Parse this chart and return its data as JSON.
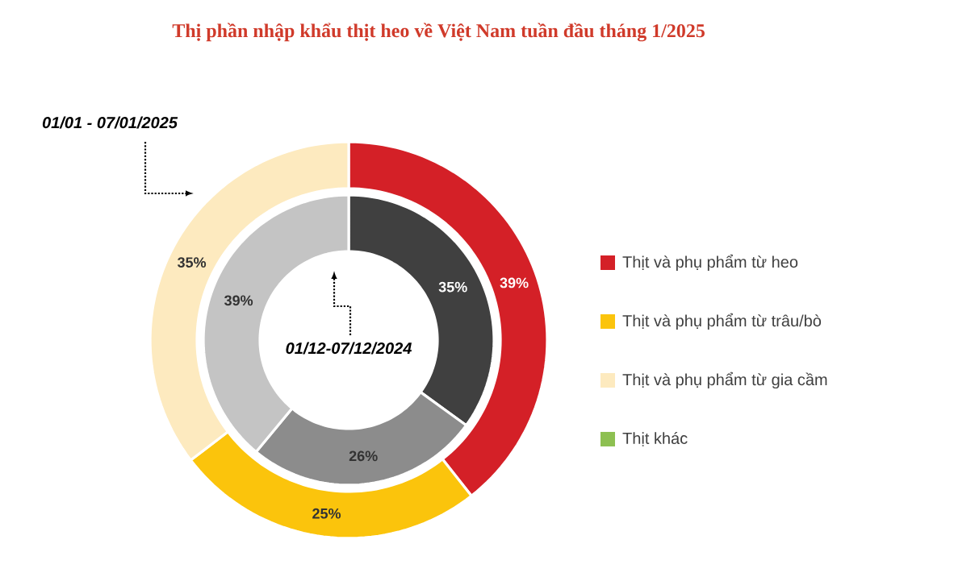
{
  "chart_data": [
    {
      "type": "donut",
      "title": "Thị phần nhập khẩu thịt heo về Việt Nam tuần đầu tháng 1/2025",
      "categories": [
        "Thịt và phụ phẩm từ heo",
        "Thịt và phụ phẩm từ trâu/bò",
        "Thịt và phụ phẩm từ gia cầm",
        "Thịt khác"
      ],
      "values": [
        39,
        25,
        35,
        0
      ],
      "value_labels": [
        "39%",
        "25%",
        "35%",
        null
      ],
      "colors": [
        "#d42027",
        "#fbc40c",
        "#fdeabf",
        "#8dc051"
      ],
      "legend": "right",
      "annotations": [
        "01/01 - 07/01/2025"
      ]
    },
    {
      "type": "donut",
      "categories": [
        null,
        null,
        null
      ],
      "values": [
        35,
        26,
        39
      ],
      "value_labels": [
        "35%",
        "26%",
        "39%"
      ],
      "colors": [
        "#404040",
        "#8c8c8c",
        "#c4c4c4"
      ],
      "annotations": [
        "01/12-07/12/2024"
      ]
    }
  ]
}
